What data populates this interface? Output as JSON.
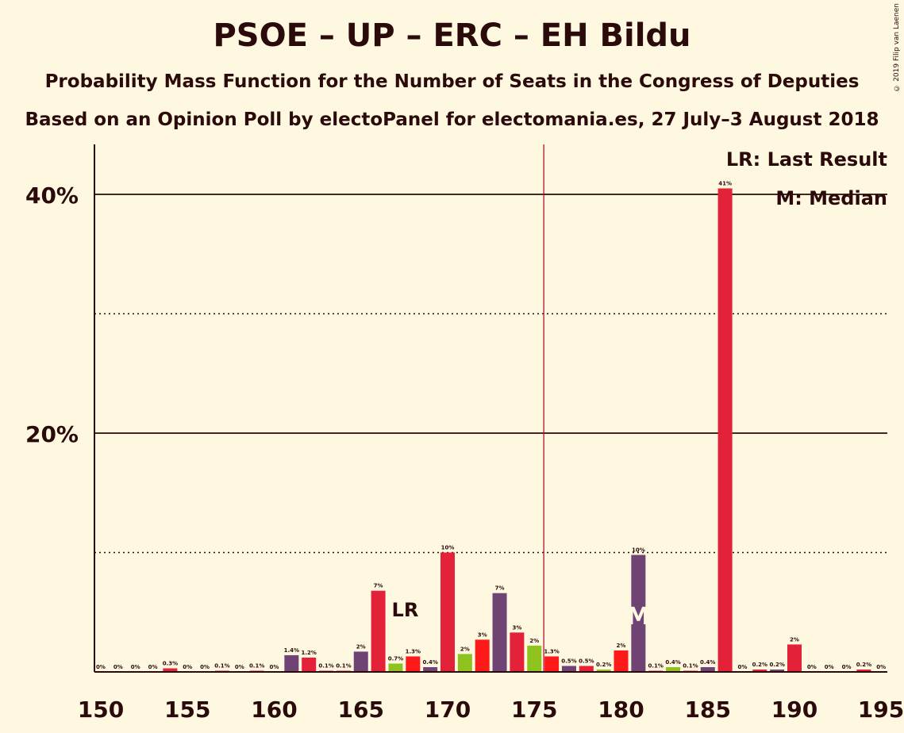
{
  "title": "PSOE – UP – ERC – EH Bildu",
  "subtitle": "Probability Mass Function for the Number of Seats in the Congress of Deputies",
  "subtitle2": "Based on an Opinion Poll by electoPanel for electomania.es, 27 July–3 August 2018",
  "copyright": "© 2019 Filip van Laenen",
  "legend": {
    "last_result": "LR: Last Result",
    "median": "M: Median"
  },
  "markers": {
    "lr_text": "LR",
    "median_text": "M"
  },
  "colors": {
    "background": "#FFF8E1",
    "text": "#2a0a0a",
    "red": "#E3223A",
    "bright_red": "#FF1A1A",
    "purple": "#6F4374",
    "green": "#8DC21F",
    "majority_line": "#B00020"
  },
  "chart_data": {
    "type": "bar",
    "title": "PSOE – UP – ERC – EH Bildu",
    "xlim": [
      150,
      195
    ],
    "ylim": [
      0,
      44
    ],
    "x_ticks": [
      150,
      155,
      160,
      165,
      170,
      175,
      180,
      185,
      190,
      195
    ],
    "x_tick_labels": [
      "150",
      "155",
      "160",
      "165",
      "170",
      "175",
      "180",
      "185",
      "190",
      "195"
    ],
    "y_ticks_solid": [
      20,
      40
    ],
    "y_tick_labels": [
      "20%",
      "40%"
    ],
    "y_ticks_dotted": [
      10,
      30
    ],
    "majority_line": 176,
    "last_result": 167,
    "median": 181,
    "bars": [
      {
        "x": 150,
        "value": 0,
        "label": "0%",
        "color": "red"
      },
      {
        "x": 151,
        "value": 0,
        "label": "0%",
        "color": "red"
      },
      {
        "x": 152,
        "value": 0,
        "label": "0%",
        "color": "red"
      },
      {
        "x": 153,
        "value": 0,
        "label": "0%",
        "color": "red"
      },
      {
        "x": 154,
        "value": 0.3,
        "label": "0.3%",
        "color": "red"
      },
      {
        "x": 155,
        "value": 0,
        "label": "0%",
        "color": "red"
      },
      {
        "x": 156,
        "value": 0,
        "label": "0%",
        "color": "red"
      },
      {
        "x": 157,
        "value": 0.1,
        "label": "0.1%",
        "color": "red"
      },
      {
        "x": 158,
        "value": 0,
        "label": "0%",
        "color": "red"
      },
      {
        "x": 159,
        "value": 0.1,
        "label": "0.1%",
        "color": "red"
      },
      {
        "x": 160,
        "value": 0,
        "label": "0%",
        "color": "red"
      },
      {
        "x": 161,
        "value": 1.4,
        "label": "1.4%",
        "color": "purple"
      },
      {
        "x": 162,
        "value": 1.2,
        "label": "1.2%",
        "color": "red"
      },
      {
        "x": 163,
        "value": 0.1,
        "label": "0.1%",
        "color": "red"
      },
      {
        "x": 164,
        "value": 0.1,
        "label": "0.1%",
        "color": "red"
      },
      {
        "x": 165,
        "value": 1.7,
        "label": "2%",
        "color": "purple"
      },
      {
        "x": 166,
        "value": 6.8,
        "label": "7%",
        "color": "red"
      },
      {
        "x": 167,
        "value": 0.7,
        "label": "0.7%",
        "color": "green"
      },
      {
        "x": 168,
        "value": 1.3,
        "label": "1.3%",
        "color": "bright_red"
      },
      {
        "x": 169,
        "value": 0.4,
        "label": "0.4%",
        "color": "purple"
      },
      {
        "x": 170,
        "value": 10,
        "label": "10%",
        "color": "red"
      },
      {
        "x": 171,
        "value": 1.5,
        "label": "2%",
        "color": "green"
      },
      {
        "x": 172,
        "value": 2.7,
        "label": "3%",
        "color": "bright_red"
      },
      {
        "x": 173,
        "value": 6.6,
        "label": "7%",
        "color": "purple"
      },
      {
        "x": 174,
        "value": 3.3,
        "label": "3%",
        "color": "red"
      },
      {
        "x": 175,
        "value": 2.2,
        "label": "2%",
        "color": "green"
      },
      {
        "x": 176,
        "value": 1.3,
        "label": "1.3%",
        "color": "bright_red"
      },
      {
        "x": 177,
        "value": 0.5,
        "label": "0.5%",
        "color": "purple"
      },
      {
        "x": 178,
        "value": 0.5,
        "label": "0.5%",
        "color": "red"
      },
      {
        "x": 179,
        "value": 0.2,
        "label": "0.2%",
        "color": "green"
      },
      {
        "x": 180,
        "value": 1.8,
        "label": "2%",
        "color": "bright_red"
      },
      {
        "x": 181,
        "value": 9.8,
        "label": "10%",
        "color": "purple"
      },
      {
        "x": 182,
        "value": 0.1,
        "label": "0.1%",
        "color": "red"
      },
      {
        "x": 183,
        "value": 0.4,
        "label": "0.4%",
        "color": "green"
      },
      {
        "x": 184,
        "value": 0.1,
        "label": "0.1%",
        "color": "bright_red"
      },
      {
        "x": 185,
        "value": 0.4,
        "label": "0.4%",
        "color": "purple"
      },
      {
        "x": 186,
        "value": 40.5,
        "label": "41%",
        "color": "red"
      },
      {
        "x": 187,
        "value": 0,
        "label": "0%",
        "color": "red"
      },
      {
        "x": 188,
        "value": 0.2,
        "label": "0.2%",
        "color": "red"
      },
      {
        "x": 189,
        "value": 0.2,
        "label": "0.2%",
        "color": "purple"
      },
      {
        "x": 190,
        "value": 2.3,
        "label": "2%",
        "color": "red"
      },
      {
        "x": 191,
        "value": 0,
        "label": "0%",
        "color": "red"
      },
      {
        "x": 192,
        "value": 0,
        "label": "0%",
        "color": "red"
      },
      {
        "x": 193,
        "value": 0,
        "label": "0%",
        "color": "red"
      },
      {
        "x": 194,
        "value": 0.2,
        "label": "0.2%",
        "color": "red"
      },
      {
        "x": 195,
        "value": 0,
        "label": "0%",
        "color": "red"
      }
    ]
  }
}
